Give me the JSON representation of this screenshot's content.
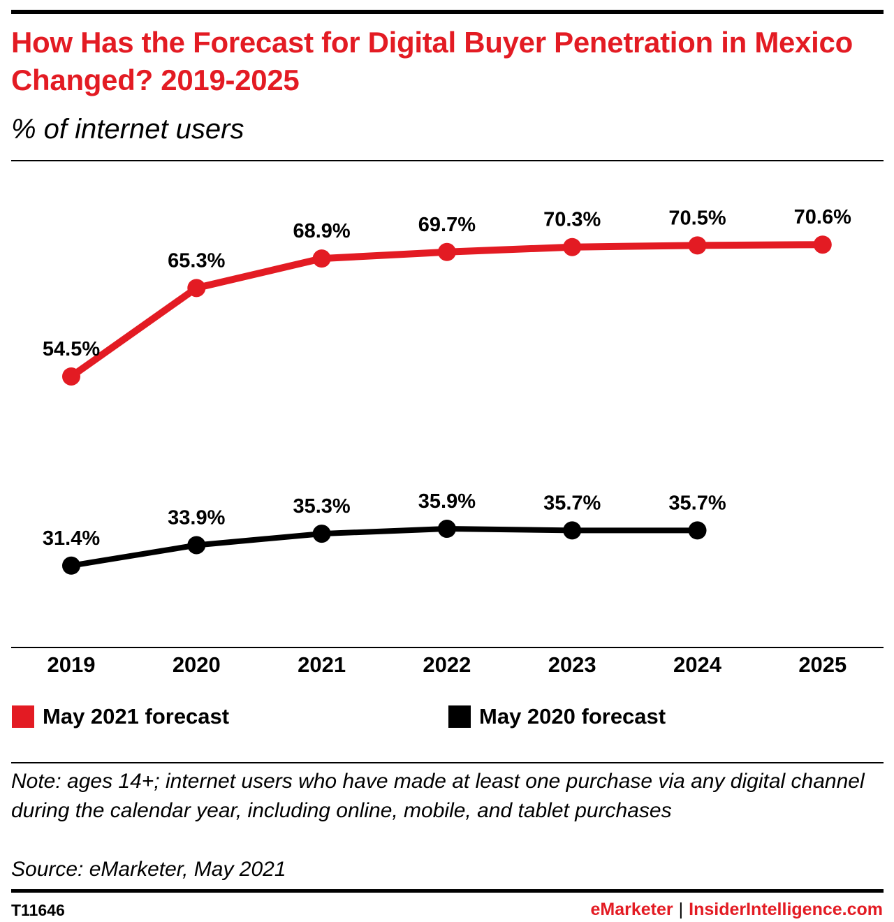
{
  "title": "How Has the Forecast for Digital Buyer Penetration in Mexico Changed? 2019-2025",
  "subtitle": "% of internet users",
  "note": "Note: ages 14+; internet users who have made at least one purchase via any digital channel during the calendar year, including online, mobile, and tablet purchases",
  "source": "Source: eMarketer, May 2021",
  "chart_id": "T11646",
  "footer": {
    "brand": "eMarketer",
    "separator": "|",
    "site": "InsiderIntelligence.com"
  },
  "colors": {
    "accent": "#e31b23",
    "black": "#000000"
  },
  "chart_data": {
    "type": "line",
    "title": "How Has the Forecast for Digital Buyer Penetration in Mexico Changed? 2019-2025",
    "subtitle": "% of internet users",
    "categories": [
      "2019",
      "2020",
      "2021",
      "2022",
      "2023",
      "2024",
      "2025"
    ],
    "series": [
      {
        "name": "May 2021 forecast",
        "color": "#e31b23",
        "values": [
          54.5,
          65.3,
          68.9,
          69.7,
          70.3,
          70.5,
          70.6
        ],
        "labels": [
          "54.5%",
          "65.3%",
          "68.9%",
          "69.7%",
          "70.3%",
          "70.5%",
          "70.6%"
        ]
      },
      {
        "name": "May 2020 forecast",
        "color": "#000000",
        "values": [
          31.4,
          33.9,
          35.3,
          35.9,
          35.7,
          35.7,
          null
        ],
        "labels": [
          "31.4%",
          "33.9%",
          "35.3%",
          "35.9%",
          "35.7%",
          "35.7%",
          ""
        ]
      }
    ],
    "ylim": [
      22,
      80
    ],
    "grid": false,
    "legend": "bottom"
  }
}
